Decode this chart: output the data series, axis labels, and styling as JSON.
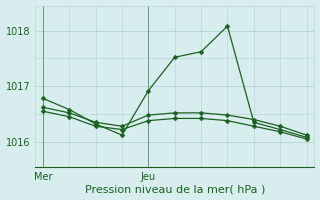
{
  "title": "",
  "xlabel": "Pression niveau de la mer( hPa )",
  "bg_color": "#d8eeee",
  "grid_color": "#b8d8d8",
  "line_color": "#1a6020",
  "x_ticks": [
    0,
    4
  ],
  "x_tick_labels": [
    "Mer",
    "Jeu"
  ],
  "ylim": [
    1015.55,
    1018.45
  ],
  "yticks": [
    1016,
    1017,
    1018
  ],
  "xlim": [
    -0.3,
    10.3
  ],
  "line1_x": [
    0,
    1,
    2,
    3,
    4,
    5,
    6,
    7,
    8,
    9,
    10
  ],
  "line1_y": [
    1016.78,
    1016.58,
    1016.32,
    1016.12,
    1016.92,
    1017.52,
    1017.62,
    1018.08,
    1016.35,
    1016.22,
    1016.08
  ],
  "line2_x": [
    0,
    1,
    2,
    3,
    4,
    5,
    6,
    7,
    8,
    9,
    10
  ],
  "line2_y": [
    1016.62,
    1016.52,
    1016.35,
    1016.28,
    1016.48,
    1016.52,
    1016.52,
    1016.48,
    1016.4,
    1016.28,
    1016.12
  ],
  "line3_x": [
    0,
    1,
    2,
    3,
    4,
    5,
    6,
    7,
    8,
    9,
    10
  ],
  "line3_y": [
    1016.55,
    1016.45,
    1016.28,
    1016.22,
    1016.38,
    1016.42,
    1016.42,
    1016.38,
    1016.28,
    1016.18,
    1016.05
  ],
  "marker_size": 2.5,
  "linewidth": 0.9,
  "xlabel_fontsize": 8,
  "tick_fontsize": 7
}
